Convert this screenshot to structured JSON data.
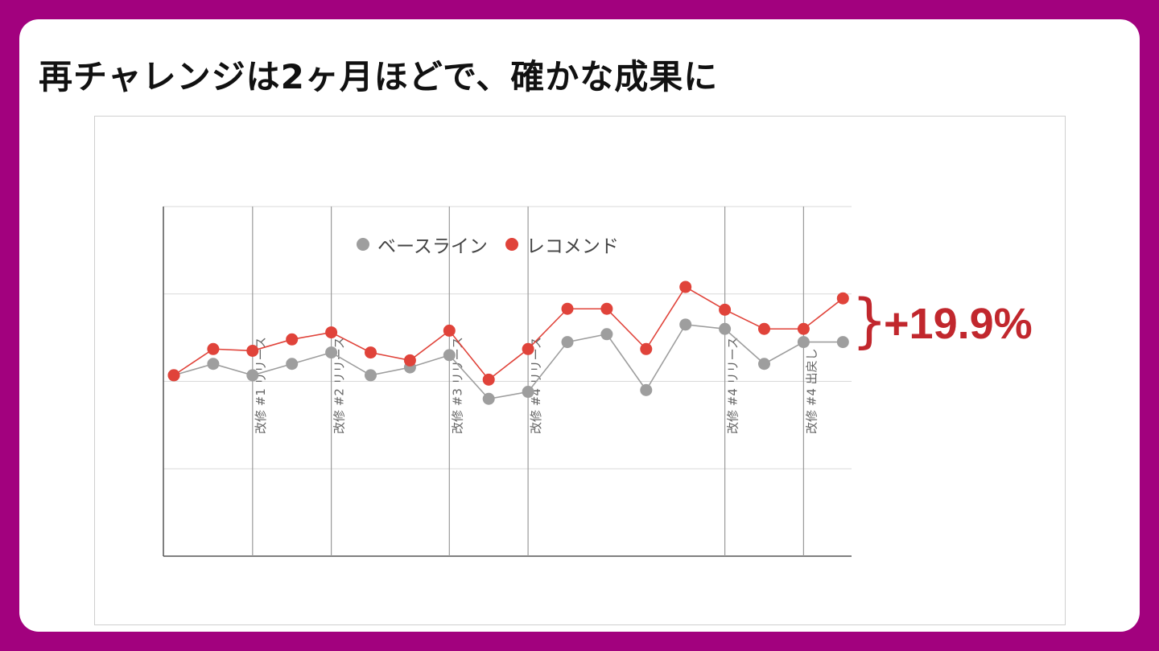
{
  "title": "再チャレンジは2ヶ月ほどで、確かな成果に",
  "chart_data": {
    "type": "line",
    "x": [
      1,
      2,
      3,
      4,
      5,
      6,
      7,
      8,
      9,
      10,
      11,
      12,
      13,
      14,
      15,
      16,
      17,
      18
    ],
    "ylim": [
      0,
      4
    ],
    "grid": true,
    "legend_position": "top-center",
    "series": [
      {
        "name": "ベースライン",
        "color": "#9e9e9e",
        "values": [
          2.07,
          2.2,
          2.07,
          2.2,
          2.33,
          2.07,
          2.16,
          2.3,
          1.8,
          1.88,
          2.45,
          2.54,
          1.9,
          2.65,
          2.6,
          2.2,
          2.45,
          2.45
        ]
      },
      {
        "name": "レコメンド",
        "color": "#e0433a",
        "values": [
          2.07,
          2.37,
          2.35,
          2.48,
          2.56,
          2.33,
          2.24,
          2.58,
          2.02,
          2.37,
          2.83,
          2.83,
          2.37,
          3.08,
          2.82,
          2.6,
          2.6,
          2.95
        ]
      }
    ],
    "annotations": [
      {
        "x_line": 3,
        "label": "改修 #1 リリース"
      },
      {
        "x_line": 5,
        "label": "改修 #2 リリース"
      },
      {
        "x_line": 8,
        "label": "改修 #3 リリース"
      },
      {
        "x_line": 10,
        "label": "改修 #4 リリース"
      },
      {
        "x_line": 15,
        "label": "改修 #4 リリース"
      },
      {
        "x_line": 17,
        "label": "改修 #4 出戻し"
      }
    ],
    "callout": "+19.9%"
  }
}
